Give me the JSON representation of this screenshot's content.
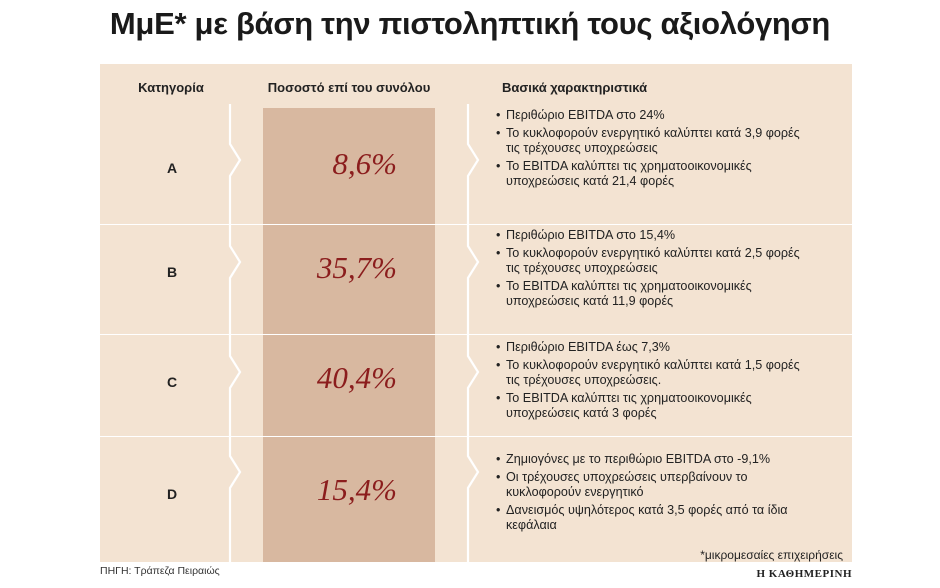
{
  "title": "ΜμΕ* με βάση την πιστοληπτική τους αξιολόγηση",
  "headers": {
    "category": "Κατηγορία",
    "percentage": "Ποσοστό επί του συνόλου",
    "features": "Βασικά χαρακτηριστικά"
  },
  "rows": [
    {
      "category": "A",
      "percent": "8,6%",
      "features": [
        "Περιθώριο EBITDA στο 24%",
        "Το κυκλοφορούν ενεργητικό καλύπτει κατά 3,9 φορές τις τρέχουσες υποχρεώσεις",
        "Το EBITDA καλύπτει τις χρηματοοικονομικές υποχρεώσεις κατά 21,4 φορές"
      ]
    },
    {
      "category": "B",
      "percent": "35,7%",
      "features": [
        "Περιθώριο EBITDA στο 15,4%",
        "Το κυκλοφορούν ενεργητικό καλύπτει κατά 2,5 φορές τις τρέχουσες υποχρεώσεις",
        "Το EBITDA καλύπτει τις χρηματοοικονομικές υποχρεώσεις κατά 11,9 φορές"
      ]
    },
    {
      "category": "C",
      "percent": "40,4%",
      "features": [
        "Περιθώριο EBITDA έως 7,3%",
        "Το κυκλοφορούν ενεργητικό καλύπτει κατά 1,5 φορές τις τρέχουσες υποχρεώσεις.",
        "Το EBITDA καλύπτει τις χρηματοοικονομικές υποχρεώσεις κατά 3 φορές"
      ]
    },
    {
      "category": "D",
      "percent": "15,4%",
      "features": [
        "Ζημιογόνες με το περιθώριο EBITDA στο -9,1%",
        "Οι τρέχουσες υποχρεώσεις υπερβαίνουν το κυκλοφορούν ενεργητικό",
        "Δανεισμός υψηλότερος κατά 3,5 φορές από τα ίδια κεφάλαια"
      ]
    }
  ],
  "footnote": "*μικρομεσαίες επιχειρήσεις",
  "source": "ΠΗΓΗ: Τράπεζα Πειραιώς",
  "logo_text": "Η ΚΑΘΗΜΕΡΙΝΗ",
  "colors": {
    "panel": "#f3e3d2",
    "percent_column": "#d8b8a0",
    "percent_text": "#8b1d1d"
  },
  "chart_data": {
    "type": "table",
    "columns": [
      "Κατηγορία",
      "Ποσοστό επί του συνόλου",
      "Βασικά χαρακτηριστικά"
    ],
    "categories": [
      "A",
      "B",
      "C",
      "D"
    ],
    "values": [
      8.6,
      35.7,
      40.4,
      15.4
    ],
    "value_labels": [
      "8,6%",
      "35,7%",
      "40,4%",
      "15,4%"
    ]
  }
}
